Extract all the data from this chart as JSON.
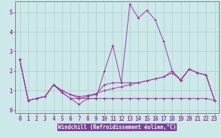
{
  "title": "",
  "xlabel": "Windchill (Refroidissement éolien,°C)",
  "background_color": "#cce8e8",
  "plot_bg_color": "#cce8e8",
  "xlabel_bg": "#7b3f9e",
  "grid_color": "#aacccc",
  "line_color": "#993399",
  "spine_color": "#555555",
  "xlim": [
    -0.5,
    23.5
  ],
  "ylim": [
    -0.15,
    5.55
  ],
  "xticks": [
    0,
    1,
    2,
    3,
    4,
    5,
    6,
    7,
    8,
    9,
    10,
    11,
    12,
    13,
    14,
    15,
    16,
    17,
    18,
    19,
    20,
    21,
    22,
    23
  ],
  "yticks": [
    0,
    1,
    2,
    3,
    4,
    5
  ],
  "series": [
    [
      2.6,
      0.5,
      0.6,
      0.7,
      1.3,
      0.9,
      0.6,
      0.3,
      0.6,
      0.6,
      2.0,
      3.3,
      1.4,
      5.4,
      4.7,
      5.1,
      4.6,
      3.5,
      2.0,
      1.5,
      2.1,
      1.9,
      1.8,
      0.5
    ],
    [
      2.6,
      0.5,
      0.6,
      0.7,
      1.3,
      1.0,
      0.8,
      0.6,
      0.7,
      0.8,
      1.3,
      1.4,
      1.4,
      1.4,
      1.4,
      1.5,
      1.6,
      1.7,
      2.0,
      1.55,
      2.1,
      1.9,
      1.8,
      0.5
    ],
    [
      2.6,
      0.5,
      0.6,
      0.7,
      1.3,
      1.0,
      0.8,
      0.7,
      0.75,
      0.85,
      1.0,
      1.1,
      1.2,
      1.3,
      1.4,
      1.5,
      1.6,
      1.7,
      1.9,
      1.55,
      2.1,
      1.9,
      1.8,
      0.5
    ],
    [
      2.6,
      0.5,
      0.6,
      0.7,
      1.3,
      0.9,
      0.6,
      0.6,
      0.6,
      0.6,
      0.6,
      0.6,
      0.6,
      0.6,
      0.6,
      0.6,
      0.6,
      0.6,
      0.6,
      0.6,
      0.6,
      0.6,
      0.6,
      0.5
    ]
  ],
  "tick_color": "#993399",
  "tick_fontsize": 5.5,
  "xlabel_fontsize": 5.5,
  "xlabel_color": "#ffffff"
}
